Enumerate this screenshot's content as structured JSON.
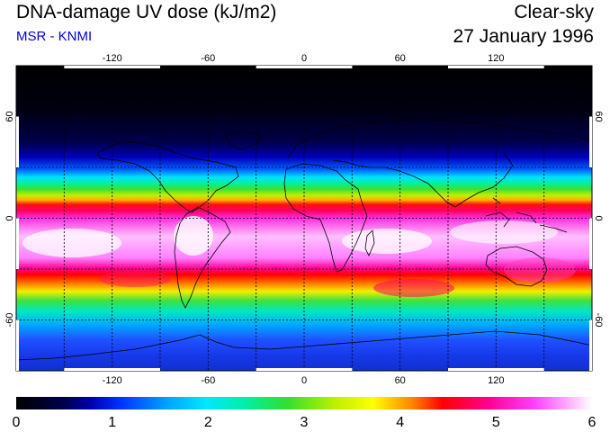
{
  "header": {
    "title": "DNA-damage UV dose (kJ/m2)",
    "subtitle": "MSR - KNMI",
    "sky_condition": "Clear-sky",
    "date": "27 January 1996"
  },
  "colors": {
    "subtitle": "#0000dd",
    "ramp": [
      "#000000",
      "#00004a",
      "#0000b0",
      "#0050ff",
      "#00d8ff",
      "#00f0a0",
      "#30e030",
      "#b8f000",
      "#ffff00",
      "#ff8000",
      "#ff0000",
      "#ff0090",
      "#ff40ff",
      "#ffb0ff",
      "#ffffff"
    ]
  },
  "map": {
    "projection": "equirectangular",
    "lon_range": [
      -180,
      180
    ],
    "lat_range": [
      -90,
      90
    ],
    "lon_ticks": [
      "-120",
      "-60",
      "0",
      "60",
      "120"
    ],
    "lat_ticks": [
      "60",
      "0",
      "-60"
    ],
    "grid": "dashed, every 30 degrees"
  },
  "colorbar": {
    "range": [
      0,
      6
    ],
    "labels": [
      "0",
      "1",
      "2",
      "3",
      "4",
      "5",
      "6"
    ]
  }
}
